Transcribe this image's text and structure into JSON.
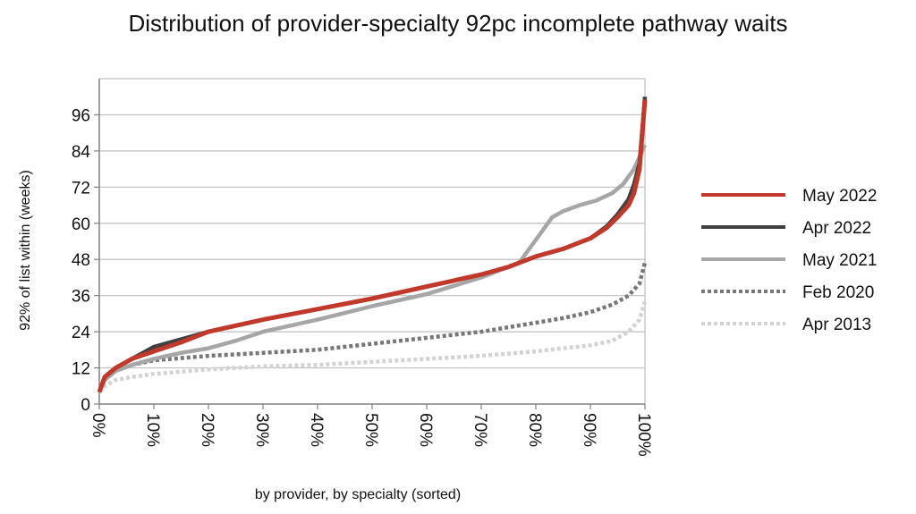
{
  "chart_data": {
    "type": "line",
    "title": "Distribution of provider-specialty 92pc incomplete pathway waits",
    "xlabel": "by provider, by specialty (sorted)",
    "ylabel": "92% of list within (weeks)",
    "xlim": [
      0,
      100
    ],
    "ylim": [
      0,
      108
    ],
    "yticks": [
      0,
      12,
      24,
      36,
      48,
      60,
      72,
      84,
      96
    ],
    "xticks": [
      0,
      10,
      20,
      30,
      40,
      50,
      60,
      70,
      80,
      90,
      100
    ],
    "xtick_labels": [
      "0%",
      "10%",
      "20%",
      "30%",
      "40%",
      "50%",
      "60%",
      "70%",
      "80%",
      "90%",
      "100%"
    ],
    "grid": "horizontal",
    "legend_position": "right",
    "series": [
      {
        "name": "Apr 2013",
        "color": "#d3d3d3",
        "dash": "dotted",
        "points": [
          [
            0,
            4
          ],
          [
            1,
            6
          ],
          [
            3,
            8
          ],
          [
            6,
            9
          ],
          [
            10,
            10
          ],
          [
            20,
            11.5
          ],
          [
            30,
            12.5
          ],
          [
            40,
            13
          ],
          [
            50,
            14
          ],
          [
            60,
            15
          ],
          [
            70,
            16
          ],
          [
            80,
            17.5
          ],
          [
            85,
            18.5
          ],
          [
            90,
            19.5
          ],
          [
            94,
            21
          ],
          [
            97,
            24
          ],
          [
            99,
            28
          ],
          [
            100,
            34
          ]
        ]
      },
      {
        "name": "Feb 2020",
        "color": "#777777",
        "dash": "dotted",
        "points": [
          [
            0,
            4
          ],
          [
            1,
            8
          ],
          [
            3,
            11
          ],
          [
            6,
            13
          ],
          [
            10,
            14.5
          ],
          [
            20,
            16
          ],
          [
            30,
            17
          ],
          [
            40,
            18
          ],
          [
            50,
            20
          ],
          [
            60,
            22
          ],
          [
            70,
            24
          ],
          [
            80,
            27
          ],
          [
            85,
            28.5
          ],
          [
            90,
            30.5
          ],
          [
            94,
            33
          ],
          [
            97,
            36
          ],
          [
            99,
            40
          ],
          [
            100,
            47
          ]
        ]
      },
      {
        "name": "May 2021",
        "color": "#a6a6a6",
        "dash": "solid",
        "points": [
          [
            0,
            4
          ],
          [
            1,
            8
          ],
          [
            3,
            11
          ],
          [
            6,
            13
          ],
          [
            10,
            15
          ],
          [
            15,
            17
          ],
          [
            20,
            18.5
          ],
          [
            25,
            21
          ],
          [
            30,
            24
          ],
          [
            40,
            28
          ],
          [
            50,
            32.5
          ],
          [
            60,
            36.5
          ],
          [
            70,
            42
          ],
          [
            77,
            47
          ],
          [
            79,
            52
          ],
          [
            81,
            57
          ],
          [
            83,
            62
          ],
          [
            85,
            64
          ],
          [
            88,
            66
          ],
          [
            91,
            67.5
          ],
          [
            94,
            70
          ],
          [
            96,
            73
          ],
          [
            98,
            78
          ],
          [
            99,
            82
          ],
          [
            100,
            86
          ]
        ]
      },
      {
        "name": "Apr 2022",
        "color": "#404040",
        "dash": "solid",
        "points": [
          [
            0,
            4
          ],
          [
            1,
            9
          ],
          [
            3,
            12
          ],
          [
            6,
            15
          ],
          [
            8,
            17
          ],
          [
            10,
            19
          ],
          [
            15,
            21.5
          ],
          [
            20,
            24
          ],
          [
            30,
            28
          ],
          [
            40,
            31.5
          ],
          [
            50,
            35
          ],
          [
            60,
            39
          ],
          [
            70,
            43
          ],
          [
            75,
            45.5
          ],
          [
            80,
            49
          ],
          [
            85,
            51.5
          ],
          [
            90,
            55
          ],
          [
            93,
            59
          ],
          [
            95,
            63
          ],
          [
            97,
            68
          ],
          [
            98,
            73
          ],
          [
            99,
            80
          ],
          [
            100,
            102
          ]
        ]
      },
      {
        "name": "May 2022",
        "color": "#c0392b",
        "dash": "solid",
        "points": [
          [
            0,
            4
          ],
          [
            1,
            9
          ],
          [
            3,
            12
          ],
          [
            6,
            15
          ],
          [
            10,
            17.5
          ],
          [
            15,
            20.5
          ],
          [
            20,
            24
          ],
          [
            30,
            28
          ],
          [
            40,
            31.5
          ],
          [
            50,
            35
          ],
          [
            60,
            39
          ],
          [
            70,
            43
          ],
          [
            75,
            45.5
          ],
          [
            80,
            49
          ],
          [
            85,
            51.5
          ],
          [
            90,
            55
          ],
          [
            93,
            58.5
          ],
          [
            95,
            62
          ],
          [
            97,
            66
          ],
          [
            98,
            70
          ],
          [
            99,
            78
          ],
          [
            100,
            101
          ]
        ]
      }
    ],
    "legend_order": [
      "May 2022",
      "Apr 2022",
      "May 2021",
      "Feb 2020",
      "Apr 2013"
    ]
  }
}
